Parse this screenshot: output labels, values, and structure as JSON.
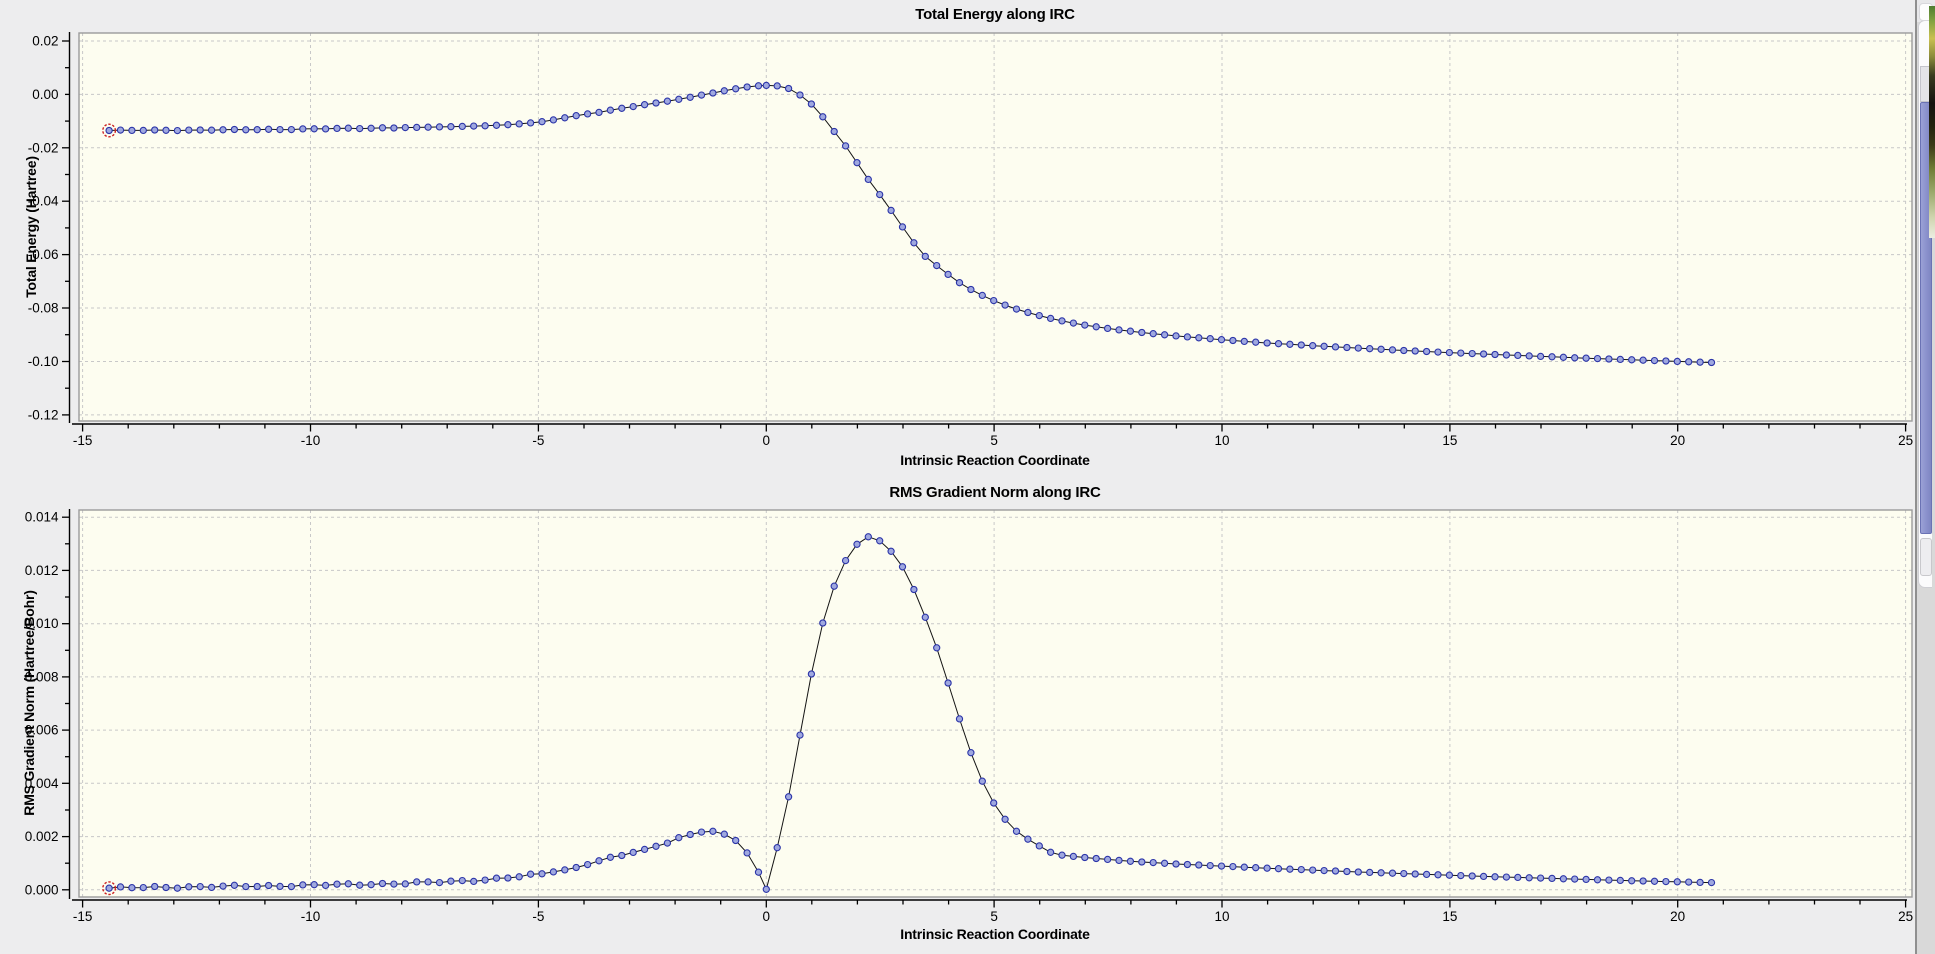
{
  "theme": {
    "panel_bg": "#ededee",
    "canvas_bg": "#fdfdf0",
    "grid_color": "#c8c8c8",
    "canvas_border_color": "#9b9b9b",
    "axis_color": "#000000",
    "line_color": "#141414",
    "marker_fill": "#9fa8df",
    "marker_stroke": "#2b34a8",
    "selected_ring_color": "#cc2222"
  },
  "chart_data": [
    {
      "type": "line",
      "title": "Total Energy along IRC",
      "xlabel": "Intrinsic Reaction Coordinate",
      "ylabel": "Total Energy (Hartree)",
      "xlim": [
        -15.08,
        25.14
      ],
      "ylim": [
        -0.1223,
        0.023
      ],
      "grid": true,
      "x_tick_values": [
        -15,
        -10,
        -5,
        0,
        5,
        10,
        15,
        20,
        25
      ],
      "x_tick_labels": [
        "-15",
        "-10",
        "-5",
        "0",
        "5",
        "10",
        "15",
        "20",
        "25"
      ],
      "x_minor_step": 1,
      "y_tick_values": [
        0.02,
        0,
        -0.02,
        -0.04,
        -0.06,
        -0.08,
        -0.1,
        -0.12
      ],
      "y_tick_labels": [
        "0.02",
        "0.00",
        "-0.02",
        "-0.04",
        "-0.06",
        "-0.08",
        "-0.10",
        "-0.12"
      ],
      "y_minor_step": 0.01,
      "selected_point_index": 0,
      "sampling": {
        "x_start": -14.42,
        "left_end": -0.17,
        "ts_x": 0,
        "right_start": 0.24,
        "x_end": 20.74,
        "step": 0.25
      },
      "noise": {
        "below_x": -8,
        "amplitude": 0.0001
      },
      "anchors": [
        [
          -14.42,
          -0.0135
        ],
        [
          -14,
          -0.01348
        ],
        [
          -13,
          -0.01341
        ],
        [
          -12,
          -0.01331
        ],
        [
          -11,
          -0.01316
        ],
        [
          -10,
          -0.01295
        ],
        [
          -9,
          -0.01272
        ],
        [
          -8,
          -0.01246
        ],
        [
          -7,
          -0.01212
        ],
        [
          -6.5,
          -0.01192
        ],
        [
          -6,
          -0.01166
        ],
        [
          -5.5,
          -0.01118
        ],
        [
          -5,
          -0.01042
        ],
        [
          -4.7,
          -0.00962
        ],
        [
          -4.45,
          -0.00886
        ],
        [
          -4.22,
          -0.00811
        ],
        [
          -3.96,
          -0.00736
        ],
        [
          -3.72,
          -0.00688
        ],
        [
          -3.49,
          -0.00613
        ],
        [
          -3.25,
          -0.00538
        ],
        [
          -3.01,
          -0.00486
        ],
        [
          -2.77,
          -0.00411
        ],
        [
          -2.54,
          -0.00351
        ],
        [
          -2.28,
          -0.00288
        ],
        [
          -2.04,
          -0.00213
        ],
        [
          -1.79,
          -0.0015
        ],
        [
          -1.55,
          -0.00064
        ],
        [
          -1.3,
          0.0001
        ],
        [
          -1.07,
          0.00086
        ],
        [
          -0.81,
          0.0017
        ],
        [
          -0.57,
          0.0024
        ],
        [
          -0.34,
          0.003
        ],
        [
          -0.09,
          0.00336
        ],
        [
          0.16,
          0.00336
        ],
        [
          0.42,
          0.00284
        ],
        [
          0.67,
          0.0006
        ],
        [
          0.93,
          -0.0025
        ],
        [
          1.18,
          -0.007
        ],
        [
          1.4,
          -0.0121
        ],
        [
          1.66,
          -0.0173
        ],
        [
          1.9,
          -0.0232
        ],
        [
          2.13,
          -0.0293
        ],
        [
          2.39,
          -0.0353
        ],
        [
          2.63,
          -0.0406
        ],
        [
          2.86,
          -0.0465
        ],
        [
          3.11,
          -0.0525
        ],
        [
          3.33,
          -0.0577
        ],
        [
          3.59,
          -0.0625
        ],
        [
          3.84,
          -0.0652
        ],
        [
          4.1,
          -0.069
        ],
        [
          4.35,
          -0.0717
        ],
        [
          4.6,
          -0.0741
        ],
        [
          4.85,
          -0.0762
        ],
        [
          5.1,
          -0.078
        ],
        [
          5.35,
          -0.0796
        ],
        [
          5.6,
          -0.081
        ],
        [
          5.85,
          -0.0822
        ],
        [
          6.1,
          -0.0833
        ],
        [
          6.35,
          -0.0843
        ],
        [
          6.6,
          -0.0852
        ],
        [
          6.85,
          -0.086
        ],
        [
          7.1,
          -0.0867
        ],
        [
          7.6,
          -0.0879
        ],
        [
          8.1,
          -0.0889
        ],
        [
          8.6,
          -0.0898
        ],
        [
          9.1,
          -0.0906
        ],
        [
          9.6,
          -0.0913
        ],
        [
          10.1,
          -0.092
        ],
        [
          11,
          -0.0931
        ],
        [
          12,
          -0.0941
        ],
        [
          13,
          -0.095
        ],
        [
          14,
          -0.0959
        ],
        [
          15,
          -0.0967
        ],
        [
          16,
          -0.0974
        ],
        [
          17,
          -0.0981
        ],
        [
          18,
          -0.0988
        ],
        [
          19,
          -0.0994
        ],
        [
          20,
          -0.1
        ],
        [
          20.74,
          -0.1004
        ]
      ]
    },
    {
      "type": "line",
      "title": "RMS Gradient Norm along IRC",
      "xlabel": "Intrinsic Reaction Coordinate",
      "ylabel": "RMS Gradient Norm (Hartree/Bohr)",
      "xlim": [
        -15.08,
        25.14
      ],
      "ylim": [
        -0.00027,
        0.01427
      ],
      "grid": true,
      "x_tick_values": [
        -15,
        -10,
        -5,
        0,
        5,
        10,
        15,
        20,
        25
      ],
      "x_tick_labels": [
        "-15",
        "-10",
        "-5",
        "0",
        "5",
        "10",
        "15",
        "20",
        "25"
      ],
      "x_minor_step": 1,
      "y_tick_values": [
        0.014,
        0.012,
        0.01,
        0.008,
        0.006,
        0.004,
        0.002,
        0.0
      ],
      "y_tick_labels": [
        "0.014",
        "0.012",
        "0.010",
        "0.008",
        "0.006",
        "0.004",
        "0.002",
        "0.000"
      ],
      "y_minor_step": 0.001,
      "selected_point_index": 0,
      "sampling": {
        "x_start": -14.42,
        "left_end": -0.17,
        "ts_x": 0,
        "right_start": 0.24,
        "x_end": 20.74,
        "step": 0.25
      },
      "noise": {
        "below_x": -5,
        "amplitude": 3e-05
      },
      "anchors": [
        [
          -14.42,
          6e-05
        ],
        [
          -14,
          8e-05
        ],
        [
          -13,
          0.0001
        ],
        [
          -12,
          0.00012
        ],
        [
          -11,
          0.00014
        ],
        [
          -10,
          0.00017
        ],
        [
          -9,
          0.0002
        ],
        [
          -8,
          0.00024
        ],
        [
          -7,
          0.0003
        ],
        [
          -6,
          0.0004
        ],
        [
          -5.5,
          0.00048
        ],
        [
          -5,
          0.00058
        ],
        [
          -4.5,
          0.00072
        ],
        [
          -4,
          0.0009
        ],
        [
          -3.46,
          0.00121
        ],
        [
          -3.19,
          0.00128
        ],
        [
          -2.93,
          0.0014
        ],
        [
          -2.69,
          0.00151
        ],
        [
          -2.45,
          0.00162
        ],
        [
          -2.2,
          0.00173
        ],
        [
          -1.97,
          0.00193
        ],
        [
          -1.74,
          0.00205
        ],
        [
          -1.48,
          0.00215
        ],
        [
          -1.24,
          0.00222
        ],
        [
          -1,
          0.00215
        ],
        [
          -0.75,
          0.00196
        ],
        [
          -0.51,
          0.00164
        ],
        [
          -0.28,
          0.00099
        ],
        [
          -0.1,
          0.00045
        ],
        [
          0,
          2e-05
        ],
        [
          0.22,
          0.00143
        ],
        [
          0.47,
          0.00331
        ],
        [
          0.71,
          0.00553
        ],
        [
          0.95,
          0.00778
        ],
        [
          1.18,
          0.00967
        ],
        [
          1.44,
          0.0112
        ],
        [
          1.68,
          0.0122
        ],
        [
          1.93,
          0.0129
        ],
        [
          2.17,
          0.01322
        ],
        [
          2.3,
          0.0133
        ],
        [
          2.41,
          0.01322
        ],
        [
          2.65,
          0.0129
        ],
        [
          2.9,
          0.0124
        ],
        [
          3.14,
          0.0117
        ],
        [
          3.38,
          0.0107
        ],
        [
          3.63,
          0.00965
        ],
        [
          3.87,
          0.00843
        ],
        [
          4.11,
          0.00711
        ],
        [
          4.35,
          0.00584
        ],
        [
          4.6,
          0.00461
        ],
        [
          4.84,
          0.0037
        ],
        [
          5.08,
          0.003
        ],
        [
          5.33,
          0.00245
        ],
        [
          5.57,
          0.00207
        ],
        [
          5.81,
          0.00183
        ],
        [
          6.05,
          0.00159
        ],
        [
          6.28,
          0.00137
        ],
        [
          6.52,
          0.00129
        ],
        [
          7.15,
          0.00119
        ],
        [
          8,
          0.00107
        ],
        [
          9,
          0.00097
        ],
        [
          10,
          0.00089
        ],
        [
          11,
          0.00081
        ],
        [
          12,
          0.00074
        ],
        [
          13,
          0.00067
        ],
        [
          14,
          0.00061
        ],
        [
          15,
          0.00055
        ],
        [
          16,
          0.00049
        ],
        [
          17,
          0.00044
        ],
        [
          18,
          0.00039
        ],
        [
          19,
          0.00034
        ],
        [
          20,
          0.0003
        ],
        [
          20.74,
          0.00027
        ]
      ]
    }
  ],
  "right_edge": {
    "divider_color": "#8f8f8f",
    "panel_bg": "#fbfbfc",
    "scrollbar_thumb_color": "#8a91cc",
    "below_panel_bg": "#d9d9d9",
    "molecule_sliver_colors": [
      "#4e7c30",
      "#c9c050",
      "#151310",
      "#6f7c35",
      "#cfd4ae"
    ]
  }
}
